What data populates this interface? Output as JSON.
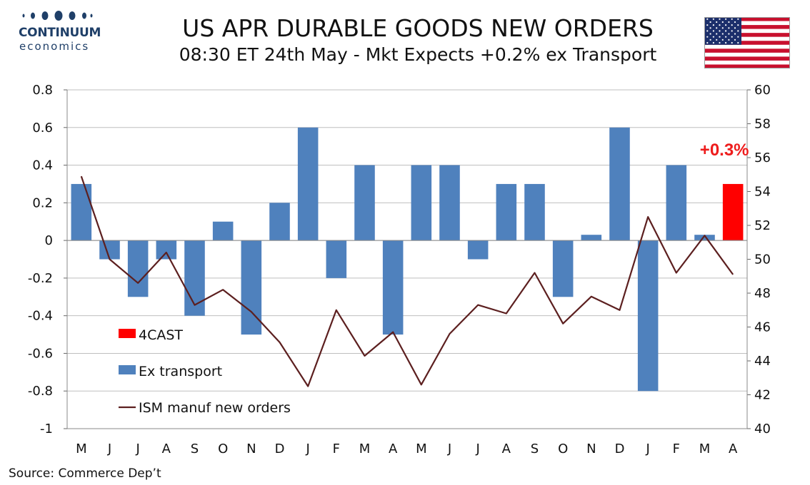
{
  "header": {
    "logo_word": "CONTINUUM",
    "logo_sub": "economics",
    "title": "US APR DURABLE GOODS NEW ORDERS",
    "subtitle": "08:30 ET 24th May - Mkt Expects +0.2% ex Transport",
    "flag_icon": "us-flag-icon"
  },
  "source": "Source: Commerce Dep’t",
  "colors": {
    "ex_transport": "#4f81bd",
    "forecast": "#ff0000",
    "ism_line": "#5c1f1f",
    "annotation": "#ee1c1c",
    "logo": "#1f3f68"
  },
  "chart_data": {
    "type": "bar",
    "categories": [
      "M",
      "J",
      "J",
      "A",
      "S",
      "O",
      "N",
      "D",
      "J",
      "F",
      "M",
      "A",
      "M",
      "J",
      "J",
      "A",
      "S",
      "O",
      "N",
      "D",
      "J",
      "F",
      "M",
      "A"
    ],
    "series": [
      {
        "name": "4CAST",
        "type": "bar",
        "axis": "left",
        "values": [
          null,
          null,
          null,
          null,
          null,
          null,
          null,
          null,
          null,
          null,
          null,
          null,
          null,
          null,
          null,
          null,
          null,
          null,
          null,
          null,
          null,
          null,
          null,
          0.3
        ]
      },
      {
        "name": "Ex transport",
        "type": "bar",
        "axis": "left",
        "values": [
          0.3,
          -0.1,
          -0.3,
          -0.1,
          -0.4,
          0.1,
          -0.5,
          0.2,
          0.6,
          -0.2,
          0.4,
          -0.5,
          0.4,
          0.4,
          -0.1,
          0.3,
          0.3,
          -0.3,
          0.03,
          0.6,
          -0.8,
          0.4,
          0.03,
          null
        ]
      },
      {
        "name": "ISM manuf new orders",
        "type": "line",
        "axis": "right",
        "values": [
          54.9,
          50.0,
          48.6,
          50.4,
          47.3,
          48.2,
          46.9,
          45.1,
          42.5,
          47.0,
          44.3,
          45.7,
          42.6,
          45.6,
          47.3,
          46.8,
          49.2,
          46.2,
          47.8,
          47.0,
          52.5,
          49.2,
          51.4,
          49.1
        ]
      }
    ],
    "yleft": {
      "ylim": [
        -1,
        0.8
      ],
      "ticks": [
        "0.8",
        "0.6",
        "0.4",
        "0.2",
        "0",
        "-0.2",
        "-0.4",
        "-0.6",
        "-0.8",
        "-1"
      ]
    },
    "yright": {
      "ylim": [
        40,
        60
      ],
      "ticks": [
        "60",
        "58",
        "56",
        "54",
        "52",
        "50",
        "48",
        "46",
        "44",
        "42",
        "40"
      ]
    },
    "annotation": {
      "text": "+0.3%",
      "category_index": 23
    },
    "grid": true,
    "legend_placement": "lower-left"
  }
}
